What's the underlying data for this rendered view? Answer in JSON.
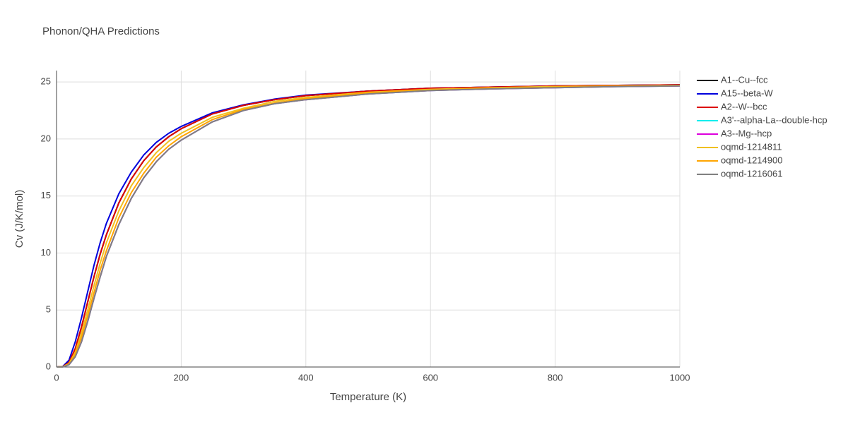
{
  "chart_data": {
    "type": "line",
    "title": "Phonon/QHA Predictions",
    "x_label": "Temperature (K)",
    "y_label": "Cv (J/K/mol)",
    "x": [
      0,
      10,
      20,
      30,
      40,
      50,
      60,
      70,
      80,
      100,
      120,
      140,
      160,
      180,
      200,
      250,
      300,
      350,
      400,
      500,
      600,
      700,
      800,
      900,
      1000
    ],
    "series": [
      {
        "name": "A1--Cu--fcc",
        "color": "#000000",
        "values": [
          0,
          0.03,
          0.4,
          1.6,
          3.5,
          5.7,
          7.9,
          9.9,
          11.6,
          14.4,
          16.5,
          18.1,
          19.3,
          20.2,
          20.9,
          22.2,
          22.95,
          23.45,
          23.8,
          24.2,
          24.45,
          24.55,
          24.65,
          24.7,
          24.75
        ]
      },
      {
        "name": "A15--beta-W",
        "color": "#0000dd",
        "values": [
          0,
          0.05,
          0.6,
          2.2,
          4.3,
          6.6,
          8.9,
          10.9,
          12.6,
          15.2,
          17.1,
          18.6,
          19.7,
          20.5,
          21.1,
          22.3,
          23.0,
          23.5,
          23.85,
          24.2,
          24.45,
          24.55,
          24.65,
          24.7,
          24.75
        ]
      },
      {
        "name": "A2--W--bcc",
        "color": "#dd0000",
        "values": [
          0,
          0.03,
          0.4,
          1.6,
          3.5,
          5.7,
          7.9,
          9.9,
          11.6,
          14.4,
          16.5,
          18.1,
          19.3,
          20.2,
          20.9,
          22.2,
          22.95,
          23.45,
          23.8,
          24.2,
          24.45,
          24.55,
          24.65,
          24.7,
          24.75
        ]
      },
      {
        "name": "A3'--alpha-La--double-hcp",
        "color": "#00eeee",
        "values": [
          0,
          0.01,
          0.2,
          0.9,
          2.2,
          4.0,
          6.0,
          7.9,
          9.7,
          12.5,
          14.8,
          16.6,
          18.0,
          19.1,
          19.9,
          21.5,
          22.5,
          23.1,
          23.45,
          23.95,
          24.25,
          24.4,
          24.5,
          24.6,
          24.65
        ]
      },
      {
        "name": "A3--Mg--hcp",
        "color": "#dd00dd",
        "values": [
          0,
          0.01,
          0.2,
          0.9,
          2.2,
          4.0,
          6.0,
          7.9,
          9.7,
          12.5,
          14.8,
          16.6,
          18.0,
          19.1,
          19.9,
          21.5,
          22.5,
          23.1,
          23.45,
          23.95,
          24.25,
          24.4,
          24.5,
          24.6,
          24.65
        ]
      },
      {
        "name": "oqmd-1214811",
        "color": "#f0c020",
        "values": [
          0,
          0.02,
          0.3,
          1.3,
          3.0,
          5.0,
          7.1,
          9.1,
          10.9,
          13.7,
          15.9,
          17.5,
          18.8,
          19.8,
          20.5,
          21.9,
          22.7,
          23.3,
          23.65,
          24.1,
          24.35,
          24.5,
          24.6,
          24.65,
          24.7
        ]
      },
      {
        "name": "oqmd-1214900",
        "color": "#ffa500",
        "values": [
          0,
          0.02,
          0.25,
          1.1,
          2.6,
          4.5,
          6.5,
          8.5,
          10.2,
          13.1,
          15.3,
          17.0,
          18.4,
          19.4,
          20.2,
          21.7,
          22.6,
          23.15,
          23.55,
          24.05,
          24.3,
          24.45,
          24.55,
          24.62,
          24.68
        ]
      },
      {
        "name": "oqmd-1216061",
        "color": "#808080",
        "values": [
          0,
          0.01,
          0.2,
          0.9,
          2.2,
          4.0,
          6.0,
          7.9,
          9.7,
          12.5,
          14.8,
          16.6,
          18.0,
          19.1,
          19.9,
          21.5,
          22.5,
          23.1,
          23.45,
          23.95,
          24.25,
          24.4,
          24.5,
          24.6,
          24.65
        ]
      }
    ],
    "xlim": [
      0,
      1000
    ],
    "ylim": [
      0,
      26
    ],
    "xticks": [
      0,
      200,
      400,
      600,
      800,
      1000
    ],
    "yticks": [
      0,
      5,
      10,
      15,
      20,
      25
    ],
    "grid": true
  }
}
